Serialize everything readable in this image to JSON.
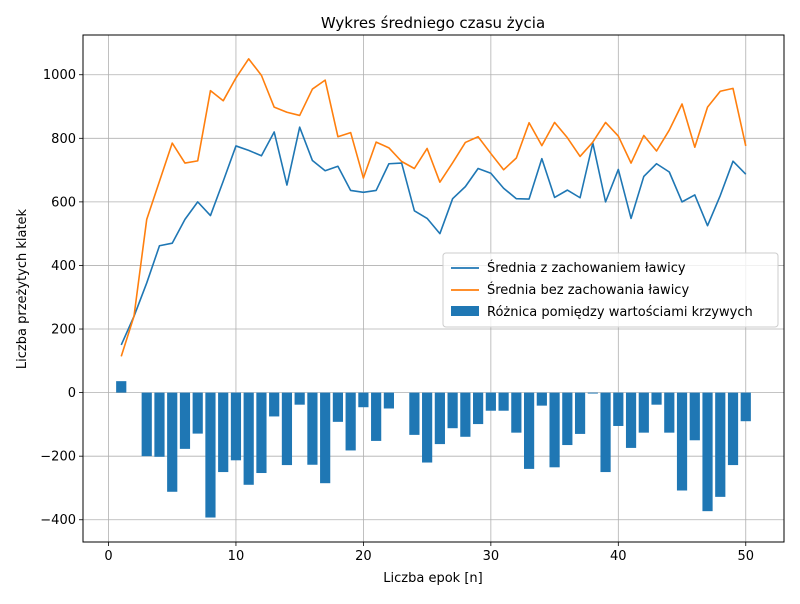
{
  "chart_data": {
    "type": "bar+line",
    "title": "Wykres średniego czasu życia",
    "xlabel": "Liczba epok [n]",
    "ylabel": "Liczba przeżytych klatek",
    "xlim": [
      -2,
      53
    ],
    "ylim": [
      -470,
      1125
    ],
    "x_ticks": [
      0,
      10,
      20,
      30,
      40,
      50
    ],
    "y_ticks": [
      -400,
      -200,
      0,
      200,
      400,
      600,
      800,
      1000
    ],
    "grid": true,
    "legend_position": "center-right",
    "colors": {
      "series1": "#1f77b4",
      "series2": "#ff7f0e",
      "bars": "#1f77b4"
    },
    "x": [
      1,
      2,
      3,
      4,
      5,
      6,
      7,
      8,
      9,
      10,
      11,
      12,
      13,
      14,
      15,
      16,
      17,
      18,
      19,
      20,
      21,
      22,
      23,
      24,
      25,
      26,
      27,
      28,
      29,
      30,
      31,
      32,
      33,
      34,
      35,
      36,
      37,
      38,
      39,
      40,
      41,
      42,
      43,
      44,
      45,
      46,
      47,
      48,
      49,
      50
    ],
    "series": [
      {
        "name": "Średnia z zachowaniem ławicy",
        "kind": "line",
        "values": [
          150,
          240,
          345,
          462,
          470,
          545,
          600,
          557,
          665,
          776,
          762,
          745,
          820,
          653,
          835,
          730,
          698,
          712,
          636,
          630,
          636,
          720,
          722,
          572,
          548,
          500,
          610,
          648,
          705,
          690,
          643,
          610,
          609,
          736,
          614,
          637,
          613,
          785,
          600,
          702,
          548,
          680,
          720,
          694,
          600,
          622,
          525,
          620,
          728,
          687
        ]
      },
      {
        "name": "Średnia bez zachowania ławicy",
        "kind": "line",
        "values": [
          114,
          240,
          545,
          665,
          785,
          722,
          729,
          950,
          918,
          990,
          1050,
          998,
          898,
          882,
          872,
          955,
          983,
          805,
          818,
          675,
          788,
          770,
          727,
          705,
          768,
          662,
          723,
          787,
          805,
          752,
          701,
          738,
          849,
          777,
          850,
          802,
          743,
          788,
          850,
          807,
          722,
          809,
          760,
          826,
          908,
          772,
          898,
          948,
          957,
          776
        ]
      },
      {
        "name": "Różnica pomiędzy wartościami krzywych",
        "kind": "bar",
        "values": [
          36,
          0,
          -200,
          -202,
          -312,
          -177,
          -129,
          -393,
          -250,
          -213,
          -290,
          -253,
          -75,
          -228,
          -38,
          -227,
          -285,
          -92,
          -182,
          -46,
          -152,
          -50,
          0,
          -133,
          -220,
          -162,
          -112,
          -139,
          -99,
          -57,
          -57,
          -126,
          -240,
          -41,
          -235,
          -165,
          -130,
          -3,
          -250,
          -105,
          -174,
          -126,
          -38,
          -126,
          -308,
          -150,
          -373,
          -328,
          -228,
          -90
        ]
      }
    ]
  }
}
